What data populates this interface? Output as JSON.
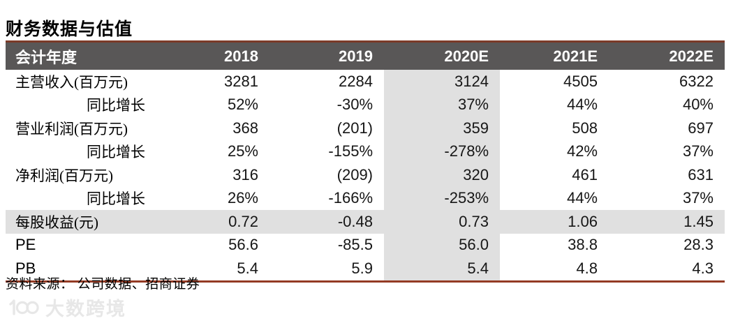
{
  "title": "财务数据与估值",
  "table": {
    "header": [
      "会计年度",
      "2018",
      "2019",
      "2020E",
      "2021E",
      "2022E"
    ],
    "highlight_column": "2020E",
    "rows": [
      {
        "label": "主营收入(百万元)",
        "indent": false,
        "highlight": false,
        "values": [
          "3281",
          "2284",
          "3124",
          "4505",
          "6322"
        ]
      },
      {
        "label": "同比增长",
        "indent": true,
        "highlight": false,
        "values": [
          "52%",
          "-30%",
          "37%",
          "44%",
          "40%"
        ]
      },
      {
        "label": "营业利润(百万元)",
        "indent": false,
        "highlight": false,
        "values": [
          "368",
          "(201)",
          "359",
          "508",
          "697"
        ]
      },
      {
        "label": "同比增长",
        "indent": true,
        "highlight": false,
        "values": [
          "25%",
          "-155%",
          "-278%",
          "42%",
          "37%"
        ]
      },
      {
        "label": "净利润(百万元)",
        "indent": false,
        "highlight": false,
        "values": [
          "316",
          "(209)",
          "320",
          "461",
          "631"
        ]
      },
      {
        "label": "同比增长",
        "indent": true,
        "highlight": false,
        "values": [
          "26%",
          "-166%",
          "-253%",
          "44%",
          "37%"
        ]
      },
      {
        "label": "每股收益(元)",
        "indent": false,
        "highlight": true,
        "values": [
          "0.72",
          "-0.48",
          "0.73",
          "1.06",
          "1.45"
        ]
      },
      {
        "label": "PE",
        "indent": false,
        "highlight": false,
        "values": [
          "56.6",
          "-85.5",
          "56.0",
          "38.8",
          "28.3"
        ]
      },
      {
        "label": "PB",
        "indent": false,
        "highlight": false,
        "values": [
          "5.4",
          "5.9",
          "5.4",
          "4.8",
          "4.3"
        ]
      }
    ]
  },
  "source": "资料来源： 公司数据、招商证券",
  "watermark": {
    "logo": "100",
    "text": "大数跨境"
  },
  "colors": {
    "rule_red_top": "#7b3a28",
    "rule_red_bottom": "#943b24",
    "header_bg": "#595757",
    "header_text": "#ffffff",
    "highlight_gray": "#e0e0e0",
    "watermark_gray": "#e7e7e7"
  }
}
